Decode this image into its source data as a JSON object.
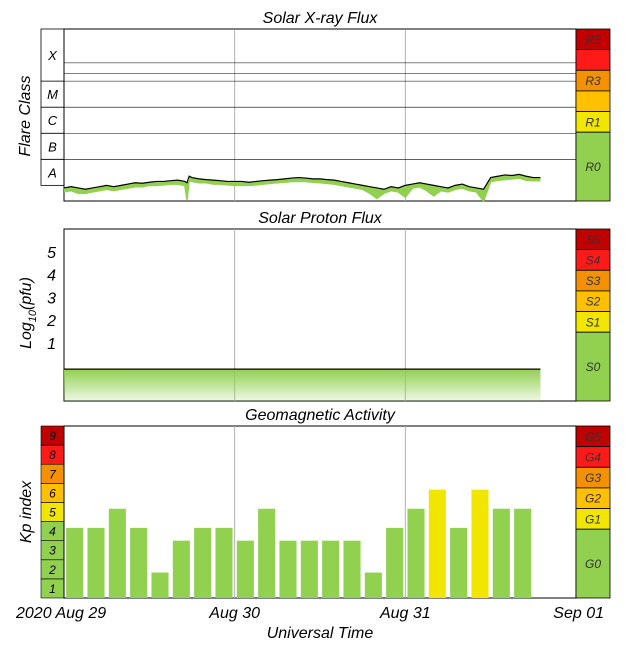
{
  "colors": {
    "green": "#92d050",
    "yellow": "#f0e600",
    "orange_light": "#ffc000",
    "orange": "#f39100",
    "red": "#ff1a1a",
    "dark_red": "#c00000",
    "flux_line": "#000000",
    "grid": "#b0b0b0"
  },
  "x_axis": {
    "title": "Universal Time",
    "ticks": [
      {
        "label": "2020 Aug 29",
        "value": 0
      },
      {
        "label": "Aug 30",
        "value": 24
      },
      {
        "label": "Aug 31",
        "value": 48
      },
      {
        "label": "Sep 01",
        "value": 72
      }
    ]
  },
  "chart_data": [
    {
      "type": "line",
      "title": "Solar X-ray Flux",
      "ylabel": "Flare Class",
      "y_scale": "log",
      "y_classes": [
        {
          "label": "A",
          "min": -8,
          "max": -7
        },
        {
          "label": "B",
          "min": -7,
          "max": -6
        },
        {
          "label": "C",
          "min": -6,
          "max": -5
        },
        {
          "label": "M",
          "min": -5,
          "max": -4
        },
        {
          "label": "X",
          "min": -4,
          "max": -2
        }
      ],
      "ylim": [
        -8.6,
        -2
      ],
      "xlim": [
        0,
        72
      ],
      "x_hours": [
        0,
        1,
        2,
        3,
        4,
        5,
        6,
        7,
        8,
        9,
        10,
        11,
        12,
        13,
        14,
        15,
        16,
        17,
        17.3,
        17.6,
        18,
        19,
        20,
        21,
        22,
        23,
        24,
        25,
        26,
        27,
        28,
        29,
        30,
        31,
        32,
        33,
        34,
        35,
        36,
        37,
        38,
        39,
        40,
        41,
        42,
        43,
        44,
        45,
        46,
        47,
        48,
        49,
        50,
        51,
        52,
        53,
        54,
        55,
        56,
        57,
        58,
        59,
        60,
        61,
        62,
        63,
        64,
        65,
        66,
        67
      ],
      "log_flux_upper": [
        -8.1,
        -8.05,
        -8.1,
        -8.15,
        -8.1,
        -8.05,
        -8.0,
        -8.05,
        -8.0,
        -7.95,
        -7.9,
        -7.92,
        -7.88,
        -7.85,
        -7.85,
        -7.82,
        -7.8,
        -7.85,
        -7.9,
        -7.65,
        -7.7,
        -7.75,
        -7.78,
        -7.8,
        -7.82,
        -7.85,
        -7.85,
        -7.85,
        -7.88,
        -7.85,
        -7.82,
        -7.8,
        -7.78,
        -7.75,
        -7.72,
        -7.7,
        -7.72,
        -7.75,
        -7.75,
        -7.78,
        -7.8,
        -7.85,
        -7.9,
        -7.95,
        -8.0,
        -8.05,
        -8.1,
        -8.15,
        -8.05,
        -8.1,
        -8.0,
        -7.95,
        -7.9,
        -7.95,
        -8.0,
        -8.05,
        -8.1,
        -8.0,
        -7.95,
        -8.05,
        -8.1,
        -8.15,
        -7.7,
        -7.65,
        -7.6,
        -7.62,
        -7.58,
        -7.65,
        -7.7,
        -7.7
      ],
      "log_flux_lower": [
        -8.25,
        -8.2,
        -8.3,
        -8.3,
        -8.25,
        -8.2,
        -8.15,
        -8.2,
        -8.15,
        -8.1,
        -8.05,
        -8.05,
        -8.0,
        -8.0,
        -7.98,
        -7.95,
        -7.95,
        -8.0,
        -8.55,
        -7.8,
        -7.85,
        -7.9,
        -7.9,
        -7.95,
        -7.95,
        -7.98,
        -8.0,
        -8.0,
        -8.0,
        -7.98,
        -7.95,
        -7.92,
        -7.9,
        -7.88,
        -7.85,
        -7.85,
        -7.85,
        -7.88,
        -7.9,
        -7.92,
        -7.95,
        -8.0,
        -8.05,
        -8.1,
        -8.15,
        -8.3,
        -8.5,
        -8.3,
        -8.2,
        -8.25,
        -8.45,
        -8.1,
        -8.05,
        -8.2,
        -8.4,
        -8.2,
        -8.25,
        -8.15,
        -8.1,
        -8.2,
        -8.25,
        -8.6,
        -7.85,
        -7.8,
        -7.78,
        -7.75,
        -7.72,
        -7.8,
        -7.82,
        -7.82
      ],
      "scale_labels": [
        {
          "label": "R5",
          "color": "#c00000"
        },
        {
          "label": "",
          "color": "#ff1a1a"
        },
        {
          "label": "R3",
          "color": "#f39100"
        },
        {
          "label": "",
          "color": "#ffc000"
        },
        {
          "label": "R1",
          "color": "#f0e600"
        },
        {
          "label": "R0",
          "color": "#92d050"
        }
      ]
    },
    {
      "type": "area",
      "title": "Solar Proton Flux",
      "ylabel": "Log10(pfu)",
      "ylabel_main": "Log",
      "ylabel_sub": "10",
      "ylabel_tail": "(pfu)",
      "y_ticks": [
        1,
        2,
        3,
        4,
        5
      ],
      "ylim": [
        -1.55,
        6
      ],
      "xlim": [
        0,
        72
      ],
      "x_end": 67,
      "log_pfu_level": -0.15,
      "scale_labels": [
        {
          "label": "S5",
          "color": "#c00000"
        },
        {
          "label": "S4",
          "color": "#ff1a1a"
        },
        {
          "label": "S3",
          "color": "#f39100"
        },
        {
          "label": "S2",
          "color": "#ffc000"
        },
        {
          "label": "S1",
          "color": "#f0e600"
        },
        {
          "label": "S0",
          "color": "#92d050"
        }
      ]
    },
    {
      "type": "bar",
      "title": "Geomagnetic Activity",
      "ylabel": "Kp index",
      "ylim": [
        0,
        9
      ],
      "xlim": [
        0,
        72
      ],
      "y_ticks": [
        "1",
        "2",
        "3",
        "4",
        "5",
        "6",
        "7",
        "8",
        "9"
      ],
      "bar_hours": [
        0,
        3,
        6,
        9,
        12,
        15,
        18,
        21,
        24,
        27,
        30,
        33,
        36,
        39,
        42,
        45,
        48,
        51,
        54,
        57,
        60,
        63
      ],
      "kp_values": [
        3.67,
        3.67,
        4.67,
        3.67,
        1.33,
        3.0,
        3.67,
        3.67,
        3.0,
        4.67,
        3.0,
        3.0,
        3.0,
        3.0,
        1.33,
        3.67,
        4.67,
        5.67,
        3.67,
        5.67,
        4.67,
        4.67
      ],
      "bar_colors": [
        "#92d050",
        "#92d050",
        "#92d050",
        "#92d050",
        "#92d050",
        "#92d050",
        "#92d050",
        "#92d050",
        "#92d050",
        "#92d050",
        "#92d050",
        "#92d050",
        "#92d050",
        "#92d050",
        "#92d050",
        "#92d050",
        "#92d050",
        "#f0e600",
        "#92d050",
        "#f0e600",
        "#92d050",
        "#92d050"
      ],
      "kp_colors": [
        "#92d050",
        "#92d050",
        "#92d050",
        "#92d050",
        "#f0e600",
        "#ffc000",
        "#f39100",
        "#ff1a1a",
        "#c00000"
      ],
      "scale_labels": [
        {
          "label": "G5",
          "color": "#c00000"
        },
        {
          "label": "G4",
          "color": "#ff1a1a"
        },
        {
          "label": "G3",
          "color": "#f39100"
        },
        {
          "label": "G2",
          "color": "#ffc000"
        },
        {
          "label": "G1",
          "color": "#f0e600"
        },
        {
          "label": "G0",
          "color": "#92d050"
        }
      ]
    }
  ]
}
